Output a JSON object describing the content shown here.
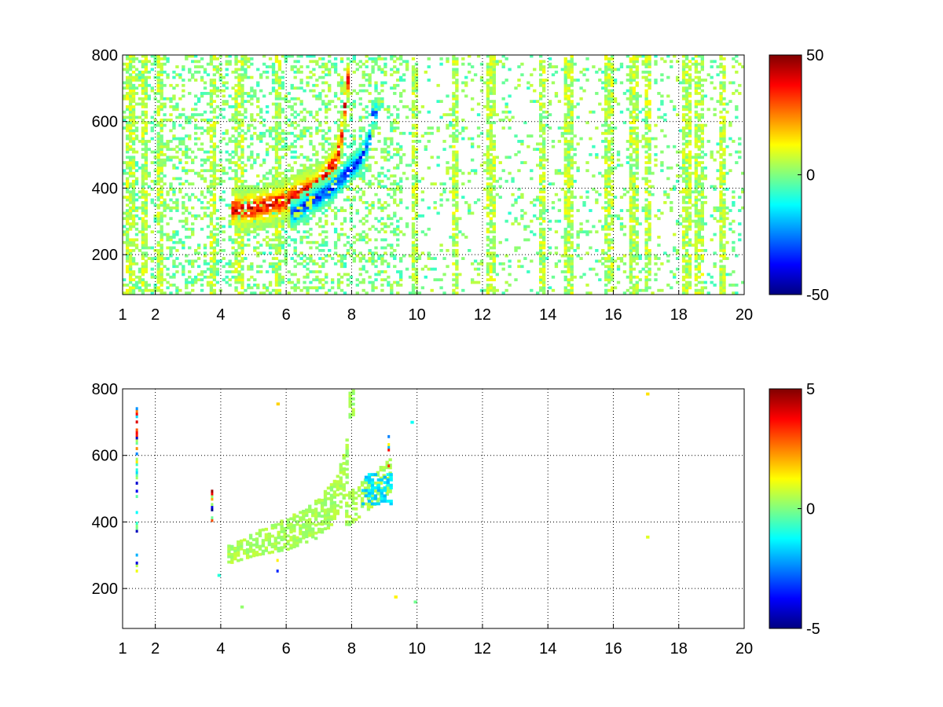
{
  "chart_data": [
    {
      "type": "heatmap",
      "title": "",
      "xlabel": "",
      "ylabel": "",
      "xlim": [
        1,
        20
      ],
      "ylim": [
        80,
        800
      ],
      "xticks": [
        1,
        2,
        4,
        6,
        8,
        10,
        12,
        14,
        16,
        18,
        20
      ],
      "xtick_labels": [
        "1",
        "2",
        "4",
        "6",
        "8",
        "10",
        "12",
        "14",
        "16",
        "18",
        "20"
      ],
      "yticks": [
        200,
        400,
        600,
        800
      ],
      "ytick_labels": [
        "200",
        "400",
        "600",
        "800"
      ],
      "grid": true,
      "colormap": "jet",
      "colorbar": {
        "clim": [
          -50,
          50
        ],
        "ticks": [
          -50,
          0,
          50
        ],
        "tick_labels": [
          "-50",
          "0",
          "50"
        ]
      },
      "features": {
        "positive_ridge": [
          [
            4.5,
            330
          ],
          [
            5,
            335
          ],
          [
            5.5,
            345
          ],
          [
            6,
            360
          ],
          [
            6.5,
            385
          ],
          [
            7,
            410
          ],
          [
            7.5,
            480
          ],
          [
            7.7,
            580
          ],
          [
            7.8,
            720
          ]
        ],
        "positive_ridge_peak": 45,
        "negative_ridge": [
          [
            6.2,
            320
          ],
          [
            6.8,
            360
          ],
          [
            7.3,
            390
          ],
          [
            7.8,
            440
          ],
          [
            8.2,
            480
          ],
          [
            8.5,
            540
          ],
          [
            8.6,
            620
          ]
        ],
        "negative_ridge_peak": -40,
        "noise_level": 8,
        "vertical_streak_x": [
          1.2,
          1.6,
          2.1,
          3.7,
          4.5,
          5.7,
          9.9,
          11.1,
          12.2,
          13.8,
          14.6,
          15.8,
          16.6,
          17.0,
          18.2,
          18.6,
          19.3
        ]
      }
    },
    {
      "type": "heatmap",
      "title": "",
      "xlabel": "",
      "ylabel": "",
      "xlim": [
        1,
        20
      ],
      "ylim": [
        80,
        800
      ],
      "xticks": [
        1,
        2,
        4,
        6,
        8,
        10,
        12,
        14,
        16,
        18,
        20
      ],
      "xtick_labels": [
        "1",
        "2",
        "4",
        "6",
        "8",
        "10",
        "12",
        "14",
        "16",
        "18",
        "20"
      ],
      "yticks": [
        200,
        400,
        600,
        800
      ],
      "ytick_labels": [
        "200",
        "400",
        "600",
        "800"
      ],
      "grid": true,
      "colormap": "jet",
      "colorbar": {
        "clim": [
          -5,
          5
        ],
        "ticks": [
          -5,
          0,
          5
        ],
        "tick_labels": [
          "-5",
          "0",
          "5"
        ]
      },
      "features": {
        "band_center": [
          [
            4.3,
            300
          ],
          [
            5,
            330
          ],
          [
            6,
            360
          ],
          [
            7,
            410
          ],
          [
            7.5,
            470
          ],
          [
            7.8,
            560
          ],
          [
            7.9,
            780
          ]
        ],
        "band_value": 0.4,
        "blue_patch": {
          "x": [
            8.3,
            9.2
          ],
          "y": [
            450,
            540
          ],
          "value": -1.5
        },
        "sparse_columns": [
          {
            "x": 1.4,
            "y": [
              240,
              790
            ]
          },
          {
            "x": 3.7,
            "y": [
              400,
              500
            ]
          },
          {
            "x": 5.7,
            "y": [
              240,
              300
            ]
          },
          {
            "x": 9.1,
            "y": [
              540,
              660
            ]
          }
        ],
        "isolated_points": [
          [
            5.7,
            750
          ],
          [
            9.8,
            695
          ],
          [
            17.0,
            780
          ],
          [
            17.0,
            350
          ],
          [
            4.6,
            140
          ],
          [
            9.3,
            170
          ],
          [
            9.9,
            155
          ],
          [
            3.9,
            235
          ]
        ]
      }
    }
  ]
}
